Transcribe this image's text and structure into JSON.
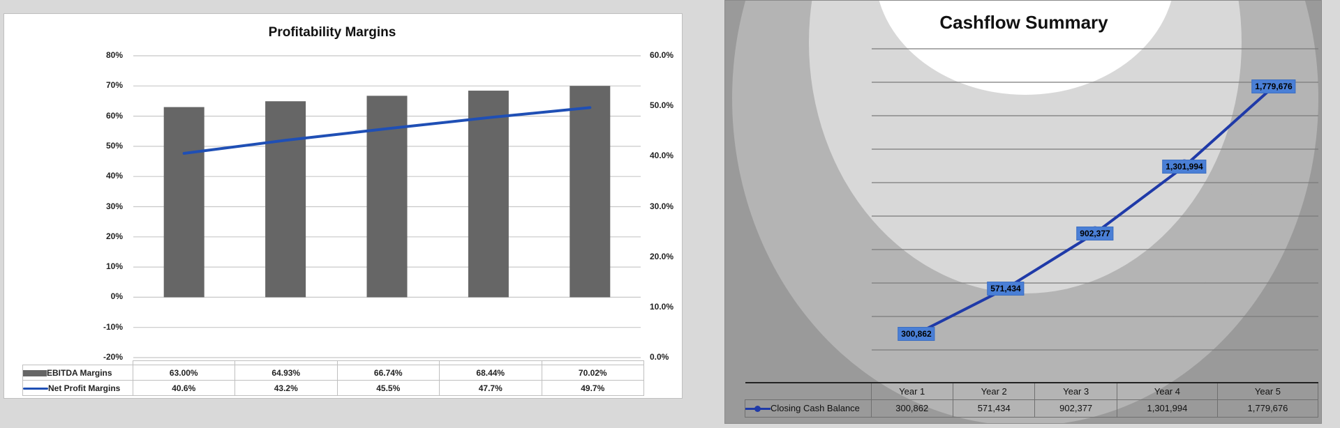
{
  "chart_data": [
    {
      "type": "bar+line",
      "title": "Profitability Margins",
      "categories": [
        "",
        "",
        "",
        "",
        ""
      ],
      "series": [
        {
          "name": "EBITDA Margins",
          "type": "bar",
          "axis": "left",
          "values": [
            63.0,
            64.93,
            66.74,
            68.44,
            70.02
          ],
          "labels": [
            "63.00%",
            "64.93%",
            "66.74%",
            "68.44%",
            "70.02%"
          ],
          "color": "#666666"
        },
        {
          "name": "Net Profit Margins",
          "type": "line",
          "axis": "right",
          "values": [
            40.6,
            43.2,
            45.5,
            47.7,
            49.7
          ],
          "labels": [
            "40.6%",
            "43.2%",
            "45.5%",
            "47.7%",
            "49.7%"
          ],
          "color": "#1f4fb5"
        }
      ],
      "left_axis": {
        "ticks": [
          "80%",
          "70%",
          "60%",
          "50%",
          "40%",
          "30%",
          "20%",
          "10%",
          "0%",
          "-10%",
          "-20%"
        ],
        "ylim": [
          -20,
          80
        ]
      },
      "right_axis": {
        "ticks": [
          "60.0%",
          "50.0%",
          "40.0%",
          "30.0%",
          "20.0%",
          "10.0%",
          "0.0%"
        ],
        "ylim": [
          0,
          60
        ]
      },
      "grid": true,
      "legend_position": "data-table"
    },
    {
      "type": "line",
      "title": "Cashflow Summary",
      "categories": [
        "Year 1",
        "Year 2",
        "Year 3",
        "Year 4",
        "Year 5"
      ],
      "series": [
        {
          "name": "Closing Cash Balance",
          "values": [
            300862,
            571434,
            902377,
            1301994,
            1779676
          ],
          "labels": [
            "300,862",
            "571,434",
            "902,377",
            "1,301,994",
            "1,779,676"
          ],
          "color": "#1f3aa8"
        }
      ],
      "grid": true,
      "legend_position": "data-table"
    }
  ],
  "left": {
    "title": "Profitability Margins",
    "left_ticks": [
      "80%",
      "70%",
      "60%",
      "50%",
      "40%",
      "30%",
      "20%",
      "10%",
      "0%",
      "-10%",
      "-20%"
    ],
    "right_ticks": [
      "60.0%",
      "50.0%",
      "40.0%",
      "30.0%",
      "20.0%",
      "10.0%",
      "0.0%"
    ],
    "rows": [
      {
        "name": "EBITDA Margins",
        "cells": [
          "63.00%",
          "64.93%",
          "66.74%",
          "68.44%",
          "70.02%"
        ]
      },
      {
        "name": "Net Profit Margins",
        "cells": [
          "40.6%",
          "43.2%",
          "45.5%",
          "47.7%",
          "49.7%"
        ]
      }
    ]
  },
  "right": {
    "title": "Cashflow Summary",
    "headers": [
      "Year 1",
      "Year 2",
      "Year 3",
      "Year 4",
      "Year 5"
    ],
    "row_name": "Closing Cash Balance",
    "cells": [
      "300,862",
      "571,434",
      "902,377",
      "1,301,994",
      "1,779,676"
    ]
  }
}
